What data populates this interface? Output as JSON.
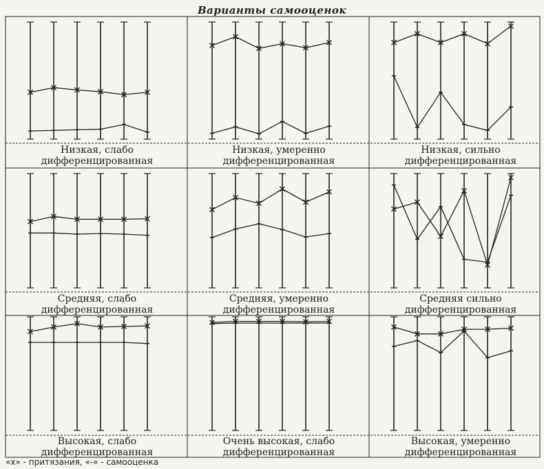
{
  "title": "Варианты самооценок",
  "legend": "«х» - притязания, «-» - самооценка",
  "colors": {
    "ink": "#222222",
    "paper": "#f4f4f0"
  },
  "chart_data": [
    {
      "type": "line",
      "caption": "Низкая, слабо дифференцированная",
      "series": [
        {
          "marker": "x",
          "values": [
            8.0,
            8.8,
            8.4,
            8.1,
            7.6,
            8.0
          ]
        },
        {
          "marker": "-",
          "values": [
            1.4,
            1.5,
            1.6,
            1.7,
            2.5,
            1.2
          ]
        }
      ]
    },
    {
      "type": "line",
      "caption": "Низкая, умеренно дифференцированная",
      "series": [
        {
          "marker": "x",
          "values": [
            16.0,
            17.5,
            15.5,
            16.3,
            15.6,
            16.5
          ]
        },
        {
          "marker": "-",
          "values": [
            1.0,
            2.1,
            0.9,
            3.0,
            1.0,
            2.2
          ]
        }
      ]
    },
    {
      "type": "line",
      "caption": "Низкая, сильно дифференцированная",
      "series": [
        {
          "marker": "x",
          "values": [
            16.5,
            18.0,
            16.5,
            18.0,
            16.3,
            19.3
          ]
        },
        {
          "marker": "-",
          "values": [
            10.8,
            2.0,
            8.0,
            2.5,
            1.5,
            5.5
          ]
        }
      ]
    },
    {
      "type": "line",
      "caption": "Средняя, слабо дифференцированная",
      "series": [
        {
          "marker": "x",
          "values": [
            11.6,
            12.5,
            12.0,
            12.0,
            12.0,
            12.1
          ]
        },
        {
          "marker": "-",
          "values": [
            9.6,
            9.6,
            9.4,
            9.5,
            9.4,
            9.2
          ]
        }
      ]
    },
    {
      "type": "line",
      "caption": "Средняя, умеренно дифференцированная",
      "series": [
        {
          "marker": "x",
          "values": [
            13.7,
            15.8,
            14.8,
            17.3,
            15.0,
            16.8
          ]
        },
        {
          "marker": "-",
          "values": [
            8.8,
            10.3,
            11.2,
            10.2,
            8.9,
            9.5
          ]
        }
      ]
    },
    {
      "type": "line",
      "caption": "Средняя сильно дифференцированная",
      "series": [
        {
          "marker": "x",
          "values": [
            13.8,
            15.0,
            9.0,
            17.0,
            4.0,
            19.3
          ]
        },
        {
          "marker": "-",
          "values": [
            18.0,
            8.5,
            14.2,
            5.0,
            4.5,
            16.2
          ]
        }
      ]
    },
    {
      "type": "line",
      "caption": "Высокая, слабо дифференцированная",
      "series": [
        {
          "marker": "x",
          "values": [
            17.4,
            18.2,
            18.8,
            18.2,
            18.3,
            18.4
          ]
        },
        {
          "marker": "-",
          "values": [
            15.5,
            15.5,
            15.5,
            15.5,
            15.5,
            15.3
          ]
        }
      ]
    },
    {
      "type": "line",
      "caption": "Очень высокая, слабо дифференцированная",
      "series": [
        {
          "marker": "x",
          "values": [
            19.0,
            19.2,
            19.2,
            19.2,
            19.1,
            19.2
          ]
        },
        {
          "marker": "-",
          "values": [
            18.8,
            18.9,
            18.9,
            18.9,
            18.9,
            18.9
          ]
        }
      ]
    },
    {
      "type": "line",
      "caption": "Высокая, умеренно дифференцированная",
      "series": [
        {
          "marker": "x",
          "values": [
            18.2,
            17.0,
            17.0,
            17.8,
            17.8,
            18.0
          ]
        },
        {
          "marker": "-",
          "values": [
            14.8,
            15.8,
            13.7,
            17.5,
            12.8,
            14.0
          ]
        }
      ]
    }
  ]
}
